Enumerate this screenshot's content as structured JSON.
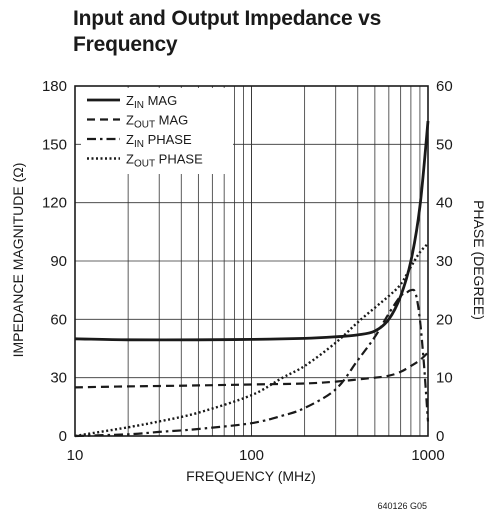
{
  "chart_data": {
    "type": "line",
    "title": [
      "Input and Output Impedance vs",
      "Frequency"
    ],
    "xlabel": "FREQUENCY (MHz)",
    "ylabel": "IMPEDANCE MAGNITUDE (Ω)",
    "y2label": "PHASE (DEGREE)",
    "x_scale": "log",
    "xlim": [
      10,
      1000
    ],
    "ylim": [
      0,
      180
    ],
    "y2lim": [
      0,
      60
    ],
    "x_ticks": [
      10,
      100,
      1000
    ],
    "y_ticks": [
      0,
      30,
      60,
      90,
      120,
      150,
      180
    ],
    "y2_ticks": [
      0,
      10,
      20,
      30,
      40,
      50,
      60
    ],
    "grid": true,
    "legend_position": "top-left",
    "series": [
      {
        "name": "ZIN MAG",
        "legend_main": "Z",
        "legend_sub": "IN",
        "legend_rest": " MAG",
        "axis": "left",
        "style": "solid",
        "x": [
          10,
          20,
          50,
          100,
          200,
          300,
          400,
          500,
          600,
          700,
          800,
          900,
          1000
        ],
        "y": [
          50,
          49.5,
          49.5,
          49.7,
          50.2,
          51,
          52,
          54,
          60,
          72,
          90,
          118,
          162
        ]
      },
      {
        "name": "ZOUT MAG",
        "legend_main": "Z",
        "legend_sub": "OUT",
        "legend_rest": " MAG",
        "axis": "left",
        "style": "dashed",
        "x": [
          10,
          20,
          50,
          100,
          200,
          300,
          500,
          600,
          700,
          800,
          900,
          1000
        ],
        "y": [
          25,
          25.5,
          26,
          26.5,
          27,
          28,
          30,
          31,
          33,
          36,
          39,
          43
        ]
      },
      {
        "name": "ZIN PHASE",
        "legend_main": "Z",
        "legend_sub": "IN",
        "legend_rest": " PHASE",
        "axis": "right",
        "style": "dashdot",
        "x": [
          10,
          20,
          30,
          50,
          100,
          150,
          200,
          300,
          400,
          500,
          600,
          700,
          750,
          800,
          850,
          900,
          950,
          1000
        ],
        "y": [
          0,
          0.3,
          0.7,
          1.2,
          2.2,
          3.5,
          4.8,
          8,
          13,
          17,
          21,
          24,
          24.5,
          25,
          24.5,
          20,
          12,
          2.5
        ]
      },
      {
        "name": "ZOUT PHASE",
        "legend_main": "Z",
        "legend_sub": "OUT",
        "legend_rest": " PHASE",
        "axis": "right",
        "style": "dotted",
        "x": [
          10,
          20,
          30,
          50,
          100,
          150,
          200,
          300,
          400,
          500,
          600,
          700,
          800,
          900,
          1000
        ],
        "y": [
          0,
          1.5,
          2.5,
          4,
          7,
          10,
          12,
          16,
          19.5,
          22,
          24,
          26,
          29,
          31.5,
          33
        ]
      }
    ]
  },
  "footnote": "640126 G05"
}
